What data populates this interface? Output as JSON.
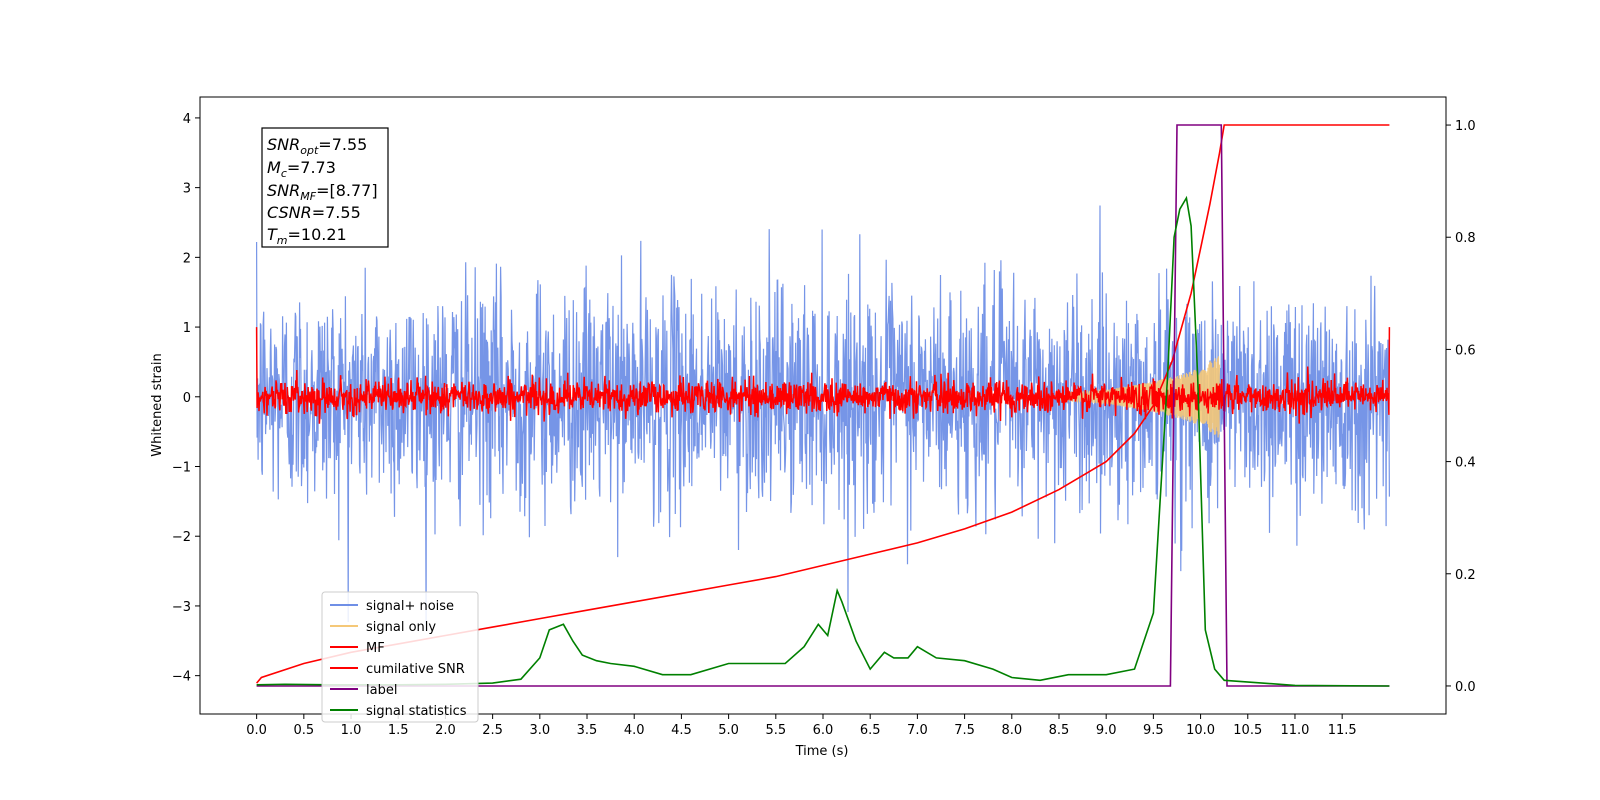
{
  "chart_data": {
    "type": "line",
    "xlabel": "Time (s)",
    "ylabel": "Whitened strain",
    "xlim": [
      -0.6,
      12.6
    ],
    "ylim": [
      -4.55,
      4.3
    ],
    "ylim_right": [
      -0.05,
      1.05
    ],
    "x_ticks": [
      "0.0",
      "0.5",
      "1.0",
      "1.5",
      "2.0",
      "2.5",
      "3.0",
      "3.5",
      "4.0",
      "4.5",
      "5.0",
      "5.5",
      "6.0",
      "6.5",
      "7.0",
      "7.5",
      "8.0",
      "8.5",
      "9.0",
      "9.5",
      "10.0",
      "10.5",
      "11.0",
      "11.5"
    ],
    "y_ticks_left": [
      "4",
      "3",
      "2",
      "1",
      "0",
      "−1",
      "−2",
      "−3",
      "−4"
    ],
    "y_ticks_right": [
      "1.0",
      "0.8",
      "0.6",
      "0.4",
      "0.2",
      "0.0"
    ],
    "legend_position": "lower-left",
    "grid": false,
    "series": [
      {
        "name": "signal+ noise",
        "color": "#6f8fe6",
        "axis": "left",
        "kind": "noise",
        "amplitude": 0.8,
        "x_range": [
          0.0,
          12.0
        ]
      },
      {
        "name": "signal only",
        "color": "#f5c878",
        "axis": "left",
        "kind": "chirp_envelope",
        "x": [
          8.5,
          9.0,
          9.5,
          9.8,
          10.0,
          10.15,
          10.2
        ],
        "amplitude": [
          0.05,
          0.1,
          0.22,
          0.32,
          0.42,
          0.55,
          0.6
        ]
      },
      {
        "name": "MF",
        "color": "#ff0000",
        "axis": "left",
        "kind": "noise",
        "amplitude": 0.12,
        "x_range": [
          0.0,
          12.0
        ]
      },
      {
        "name": "cumilative SNR",
        "color": "#ff0000",
        "axis": "right",
        "x": [
          0.0,
          0.05,
          0.5,
          1.0,
          1.5,
          2.0,
          2.5,
          3.0,
          3.5,
          4.0,
          4.5,
          5.0,
          5.5,
          6.0,
          6.5,
          7.0,
          7.5,
          8.0,
          8.5,
          9.0,
          9.3,
          9.5,
          9.7,
          9.9,
          10.0,
          10.1,
          10.2,
          10.25,
          12.0
        ],
        "y": [
          0.005,
          0.015,
          0.04,
          0.06,
          0.075,
          0.09,
          0.105,
          0.12,
          0.135,
          0.15,
          0.165,
          0.18,
          0.195,
          0.215,
          0.235,
          0.255,
          0.28,
          0.31,
          0.35,
          0.4,
          0.45,
          0.5,
          0.58,
          0.7,
          0.78,
          0.86,
          0.95,
          1.0,
          1.0
        ]
      },
      {
        "name": "label",
        "color": "#800080",
        "axis": "right",
        "x": [
          0.0,
          9.68,
          9.75,
          10.22,
          10.28,
          12.0
        ],
        "y": [
          0.0,
          0.0,
          1.0,
          1.0,
          0.0,
          0.0
        ]
      },
      {
        "name": "signal statistics",
        "color": "#008000",
        "axis": "right",
        "x": [
          0.0,
          0.3,
          0.8,
          1.5,
          2.0,
          2.5,
          2.8,
          3.0,
          3.1,
          3.25,
          3.35,
          3.45,
          3.6,
          3.75,
          4.0,
          4.3,
          4.6,
          5.0,
          5.3,
          5.6,
          5.8,
          5.95,
          6.05,
          6.15,
          6.2,
          6.35,
          6.5,
          6.65,
          6.75,
          6.9,
          7.0,
          7.2,
          7.5,
          7.8,
          8.0,
          8.3,
          8.6,
          9.0,
          9.3,
          9.5,
          9.65,
          9.72,
          9.78,
          9.85,
          9.9,
          9.97,
          10.05,
          10.15,
          10.25,
          11.0,
          12.0
        ],
        "y": [
          0.002,
          0.003,
          0.002,
          0.002,
          0.003,
          0.005,
          0.012,
          0.05,
          0.1,
          0.11,
          0.08,
          0.055,
          0.045,
          0.04,
          0.035,
          0.02,
          0.02,
          0.04,
          0.04,
          0.04,
          0.07,
          0.11,
          0.09,
          0.17,
          0.15,
          0.08,
          0.03,
          0.06,
          0.05,
          0.05,
          0.07,
          0.05,
          0.045,
          0.03,
          0.015,
          0.01,
          0.02,
          0.02,
          0.03,
          0.13,
          0.55,
          0.8,
          0.85,
          0.87,
          0.82,
          0.55,
          0.1,
          0.03,
          0.01,
          0.001,
          0.0
        ]
      }
    ]
  },
  "info_box": {
    "line1_base": "SNR",
    "line1_sub": "opt",
    "line1_value": "=7.55",
    "line2_base": "M",
    "line2_sub": "c",
    "line2_value": "=7.73",
    "line3_base": "SNR",
    "line3_sub": "MF",
    "line3_value": "=[8.77]",
    "line4_base": "CSNR",
    "line4_value": "=7.55",
    "line5_base": "T",
    "line5_sub": "m",
    "line5_value": "=10.21"
  }
}
